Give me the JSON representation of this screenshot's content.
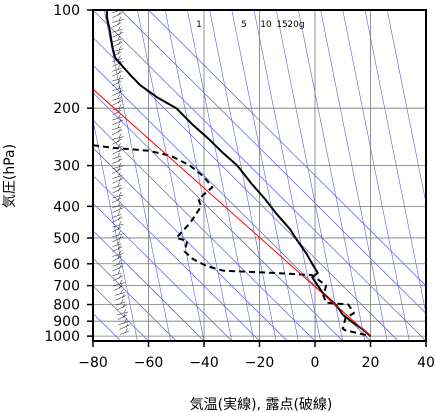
{
  "chart_data": {
    "type": "line",
    "title": "",
    "xlabel": "気温(実線), 露点(破線)",
    "ylabel": "気圧(hPa)",
    "xlim": [
      -80,
      40
    ],
    "ylim": [
      1035,
      100
    ],
    "y_scale": "log",
    "x_ticks": [
      -80,
      -60,
      -40,
      -20,
      0,
      20,
      40
    ],
    "x_tick_labels": [
      "−80",
      "−60",
      "−40",
      "−20",
      "0",
      "20",
      "40"
    ],
    "y_ticks": [
      100,
      200,
      300,
      400,
      500,
      600,
      700,
      800,
      900,
      1000
    ],
    "y_tick_labels": [
      "100",
      "200",
      "300",
      "400",
      "500",
      "600",
      "700",
      "800",
      "900",
      "1000"
    ],
    "grid": true,
    "mixing_ratio_labels": [
      "1",
      "5",
      "10",
      "15",
      "20g"
    ],
    "series": [
      {
        "role": "temperature",
        "style": "solid",
        "color": "#000000",
        "points": [
          [
            -75,
            100
          ],
          [
            -75,
            105
          ],
          [
            -74,
            115
          ],
          [
            -73,
            130
          ],
          [
            -72,
            140
          ],
          [
            -69,
            150
          ],
          [
            -66,
            160
          ],
          [
            -63,
            170
          ],
          [
            -57,
            185
          ],
          [
            -50,
            200
          ],
          [
            -44,
            225
          ],
          [
            -38,
            250
          ],
          [
            -33,
            275
          ],
          [
            -28,
            300
          ],
          [
            -23,
            340
          ],
          [
            -18,
            380
          ],
          [
            -14,
            420
          ],
          [
            -9,
            470
          ],
          [
            -7,
            500
          ],
          [
            -3,
            560
          ],
          [
            -1,
            600
          ],
          [
            1,
            640
          ],
          [
            -1,
            660
          ],
          [
            1,
            700
          ],
          [
            3,
            740
          ],
          [
            6,
            780
          ],
          [
            8,
            810
          ],
          [
            10,
            860
          ],
          [
            13,
            900
          ],
          [
            17,
            950
          ],
          [
            20,
            1000
          ]
        ]
      },
      {
        "role": "dewpoint",
        "style": "dashed",
        "color": "#000000",
        "points": [
          [
            -80,
            260
          ],
          [
            -72,
            265
          ],
          [
            -60,
            270
          ],
          [
            -52,
            280
          ],
          [
            -45,
            300
          ],
          [
            -40,
            325
          ],
          [
            -37,
            350
          ],
          [
            -42,
            380
          ],
          [
            -41,
            400
          ],
          [
            -45,
            450
          ],
          [
            -50,
            500
          ],
          [
            -46,
            510
          ],
          [
            -47,
            550
          ],
          [
            -44,
            580
          ],
          [
            -39,
            610
          ],
          [
            -33,
            630
          ],
          [
            -15,
            640
          ],
          [
            -1,
            650
          ],
          [
            4,
            700
          ],
          [
            3,
            750
          ],
          [
            4,
            790
          ],
          [
            12,
            800
          ],
          [
            14,
            850
          ],
          [
            11,
            880
          ],
          [
            10,
            950
          ],
          [
            11,
            960
          ],
          [
            20,
            1000
          ]
        ]
      },
      {
        "role": "reference",
        "style": "solid",
        "color": "#ff0000",
        "points": [
          [
            20,
            1000
          ],
          [
            -80,
            175
          ]
        ]
      }
    ]
  }
}
